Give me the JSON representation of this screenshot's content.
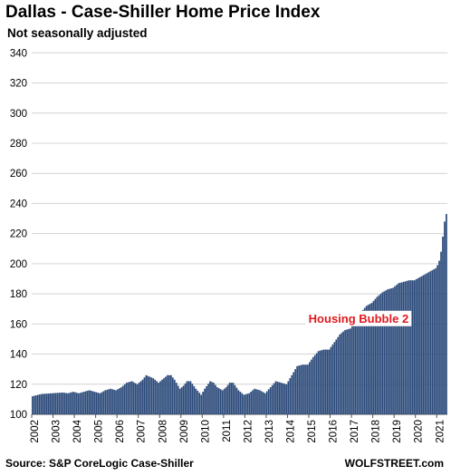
{
  "colors": {
    "bar": "#2b4a7a",
    "annotation_text": "#e0191e",
    "grid": "#d4d4d4"
  },
  "chart_data": {
    "type": "bar",
    "title": "Dallas - Case-Shiller Home Price Index",
    "subtitle": "Not seasonally adjusted",
    "xlabel": "",
    "ylabel": "",
    "ylim": [
      100,
      345
    ],
    "yticks": [
      "100",
      "120",
      "140",
      "160",
      "180",
      "200",
      "220",
      "240",
      "260",
      "280",
      "300",
      "320",
      "340"
    ],
    "grid": "horizontal",
    "xtick_labels": [
      "2002",
      "2003",
      "2004",
      "2005",
      "2006",
      "2007",
      "2008",
      "2009",
      "2010",
      "2011",
      "2012",
      "2013",
      "2014",
      "2015",
      "2016",
      "2017",
      "2018",
      "2019",
      "2020",
      "2021"
    ],
    "series": [
      {
        "frequency": "monthly",
        "start": "2002-01",
        "anchors": [
          [
            "2002-01",
            112
          ],
          [
            "2002-06",
            113.5
          ],
          [
            "2002-12",
            114
          ],
          [
            "2003-06",
            114.5
          ],
          [
            "2003-09",
            114
          ],
          [
            "2003-12",
            115
          ],
          [
            "2004-03",
            114
          ],
          [
            "2004-06",
            115
          ],
          [
            "2004-09",
            116
          ],
          [
            "2004-12",
            115
          ],
          [
            "2005-03",
            114
          ],
          [
            "2005-06",
            116
          ],
          [
            "2005-09",
            117
          ],
          [
            "2005-12",
            116
          ],
          [
            "2006-03",
            118
          ],
          [
            "2006-06",
            121
          ],
          [
            "2006-09",
            122
          ],
          [
            "2006-12",
            120
          ],
          [
            "2007-03",
            123
          ],
          [
            "2007-05",
            126
          ],
          [
            "2007-07",
            125
          ],
          [
            "2007-09",
            124
          ],
          [
            "2007-12",
            121
          ],
          [
            "2008-02",
            123
          ],
          [
            "2008-05",
            126
          ],
          [
            "2008-07",
            126
          ],
          [
            "2008-09",
            123
          ],
          [
            "2008-12",
            117
          ],
          [
            "2009-02",
            119
          ],
          [
            "2009-04",
            122
          ],
          [
            "2009-06",
            122
          ],
          [
            "2009-09",
            117
          ],
          [
            "2009-12",
            113
          ],
          [
            "2010-02",
            117
          ],
          [
            "2010-05",
            122
          ],
          [
            "2010-07",
            121
          ],
          [
            "2010-09",
            118
          ],
          [
            "2010-12",
            116
          ],
          [
            "2011-02",
            118
          ],
          [
            "2011-04",
            121
          ],
          [
            "2011-06",
            121
          ],
          [
            "2011-09",
            116
          ],
          [
            "2011-12",
            113
          ],
          [
            "2012-03",
            114
          ],
          [
            "2012-06",
            117
          ],
          [
            "2012-09",
            116
          ],
          [
            "2012-12",
            114
          ],
          [
            "2013-03",
            118
          ],
          [
            "2013-06",
            122
          ],
          [
            "2013-09",
            121
          ],
          [
            "2013-12",
            120
          ],
          [
            "2014-03",
            126
          ],
          [
            "2014-06",
            132
          ],
          [
            "2014-09",
            133
          ],
          [
            "2014-12",
            133
          ],
          [
            "2015-03",
            138
          ],
          [
            "2015-06",
            142
          ],
          [
            "2015-09",
            143
          ],
          [
            "2015-12",
            143
          ],
          [
            "2016-03",
            148
          ],
          [
            "2016-06",
            153
          ],
          [
            "2016-09",
            156
          ],
          [
            "2016-12",
            157
          ],
          [
            "2017-03",
            163
          ],
          [
            "2017-06",
            168
          ],
          [
            "2017-09",
            172
          ],
          [
            "2017-12",
            174
          ],
          [
            "2018-03",
            178
          ],
          [
            "2018-06",
            181
          ],
          [
            "2018-09",
            183
          ],
          [
            "2018-12",
            184
          ],
          [
            "2019-03",
            187
          ],
          [
            "2019-06",
            188
          ],
          [
            "2019-09",
            189
          ],
          [
            "2019-12",
            189
          ],
          [
            "2020-03",
            191
          ],
          [
            "2020-06",
            193
          ],
          [
            "2020-09",
            195
          ],
          [
            "2020-12",
            197
          ],
          [
            "2021-01",
            199
          ],
          [
            "2021-02",
            202
          ],
          [
            "2021-03",
            208
          ],
          [
            "2021-04",
            218
          ],
          [
            "2021-05",
            228
          ],
          [
            "2021-06",
            233
          ]
        ]
      }
    ],
    "annotations": [
      {
        "text": "Housing Bubble 2",
        "x": "2017-05",
        "y": 163
      }
    ]
  },
  "footer": {
    "source": "Source: S&P CoreLogic Case-Shiller",
    "brand": "WOLFSTREET.com"
  }
}
